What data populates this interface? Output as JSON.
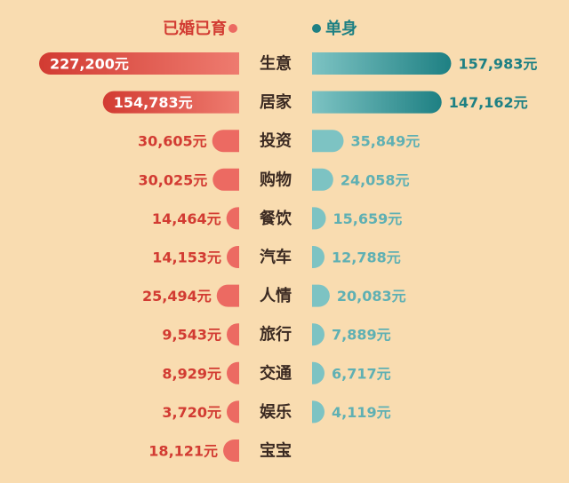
{
  "chart_data": {
    "type": "bar",
    "categories": [
      "生意",
      "居家",
      "投资",
      "购物",
      "餐饮",
      "汽车",
      "人情",
      "旅行",
      "交通",
      "娱乐",
      "宝宝"
    ],
    "series": [
      {
        "name": "已婚已育",
        "values": [
          227200,
          154783,
          30605,
          30025,
          14464,
          14153,
          25494,
          9543,
          8929,
          3720,
          18121
        ],
        "labels": [
          "227,200元",
          "154,783元",
          "30,605元",
          "30,025元",
          "14,464元",
          "14,153元",
          "25,494元",
          "9,543元",
          "8,929元",
          "3,720元",
          "18,121元"
        ]
      },
      {
        "name": "单身",
        "values": [
          157983,
          147162,
          35849,
          24058,
          15659,
          12788,
          20083,
          7889,
          6717,
          4119,
          null
        ],
        "labels": [
          "157,983元",
          "147,162元",
          "35,849元",
          "24,058元",
          "15,659元",
          "12,788元",
          "20,083元",
          "7,889元",
          "6,717元",
          "4,119元",
          ""
        ]
      }
    ],
    "legend": "top",
    "colors": {
      "married": "#d23b32",
      "married_light": "#ec6a62",
      "single": "#5fb0b3",
      "single_dark": "#1e8083",
      "background": "#f9dcb0",
      "category_text": "#3b2a22"
    }
  }
}
